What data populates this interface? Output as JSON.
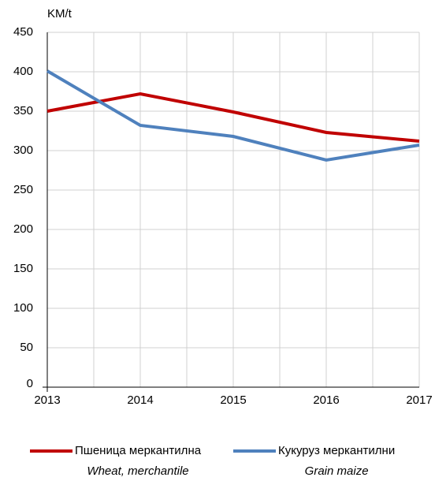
{
  "chart_data": {
    "type": "line",
    "y_label": "KM/t",
    "x": [
      2013,
      2014,
      2015,
      2016,
      2017
    ],
    "series": [
      {
        "name": "Пшеница меркантилна",
        "name_en": "Wheat, merchantile",
        "color": "#c00000",
        "values": [
          350,
          372,
          349,
          323,
          312
        ]
      },
      {
        "name": "Кукуруз меркантилни",
        "name_en": "Grain maize",
        "color": "#4f81bd",
        "values": [
          401,
          332,
          318,
          288,
          307
        ]
      }
    ],
    "xlim": [
      2013,
      2017
    ],
    "xticks": [
      2013,
      2014,
      2015,
      2016,
      2017
    ],
    "ylim": [
      0,
      450
    ],
    "yticks": [
      0,
      50,
      100,
      150,
      200,
      250,
      300,
      350,
      400,
      450
    ],
    "grid": true,
    "legend": "bottom"
  }
}
